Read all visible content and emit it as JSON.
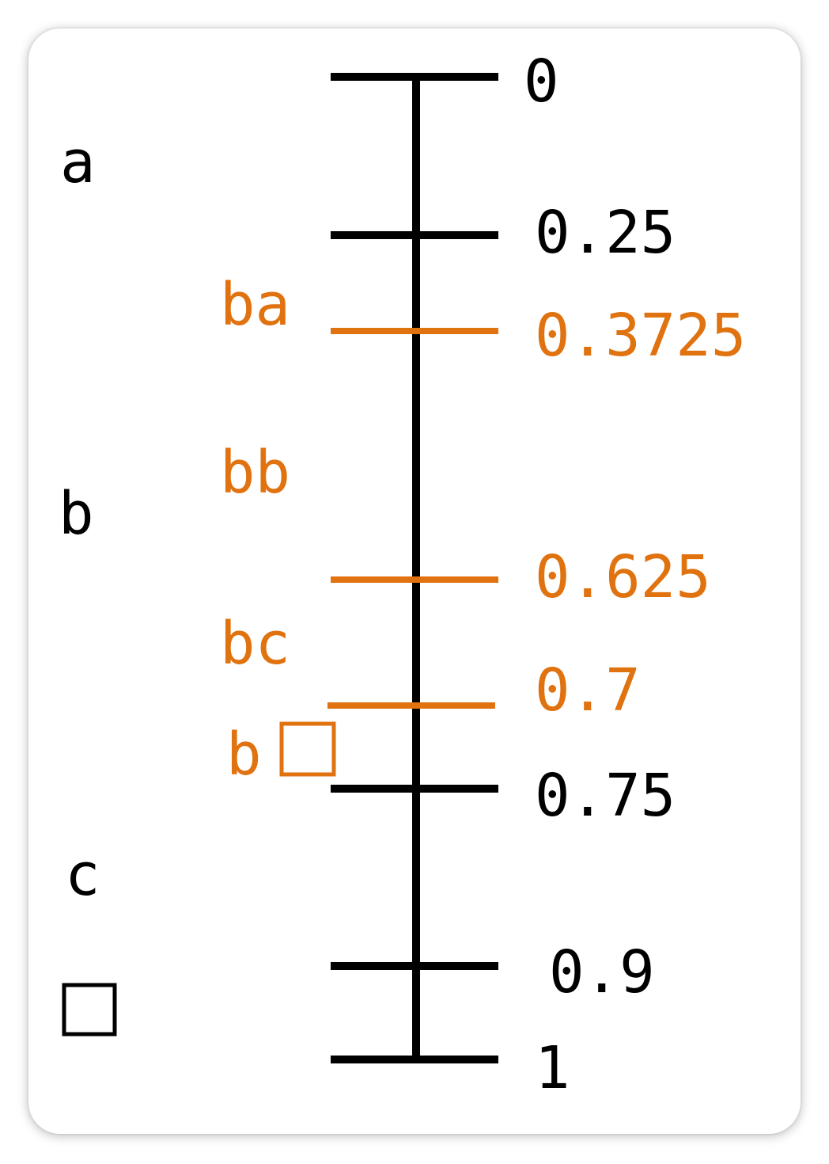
{
  "colors": {
    "primary": "#000000",
    "highlight": "#E07210"
  },
  "ticks": [
    {
      "value": 0,
      "label": "0",
      "highlight": false
    },
    {
      "value": 0.25,
      "label": "0.25",
      "highlight": false
    },
    {
      "value": 0.3725,
      "label": "0.3725",
      "highlight": true
    },
    {
      "value": 0.625,
      "label": "0.625",
      "highlight": true
    },
    {
      "value": 0.7,
      "label": "0.7",
      "highlight": true
    },
    {
      "value": 0.75,
      "label": "0.75",
      "highlight": false
    },
    {
      "value": 0.9,
      "label": "0.9",
      "highlight": false
    },
    {
      "value": 1,
      "label": "1",
      "highlight": false
    }
  ],
  "symbols": [
    {
      "label": "a",
      "highlight": false
    },
    {
      "label": "b",
      "highlight": false
    },
    {
      "label": "c",
      "highlight": false
    },
    {
      "label": "□",
      "highlight": false
    }
  ],
  "sub_symbols": [
    {
      "label": "ba",
      "highlight": true
    },
    {
      "label": "bb",
      "highlight": true
    },
    {
      "label": "bc",
      "highlight": true
    },
    {
      "label": "b□",
      "highlight": true
    }
  ]
}
